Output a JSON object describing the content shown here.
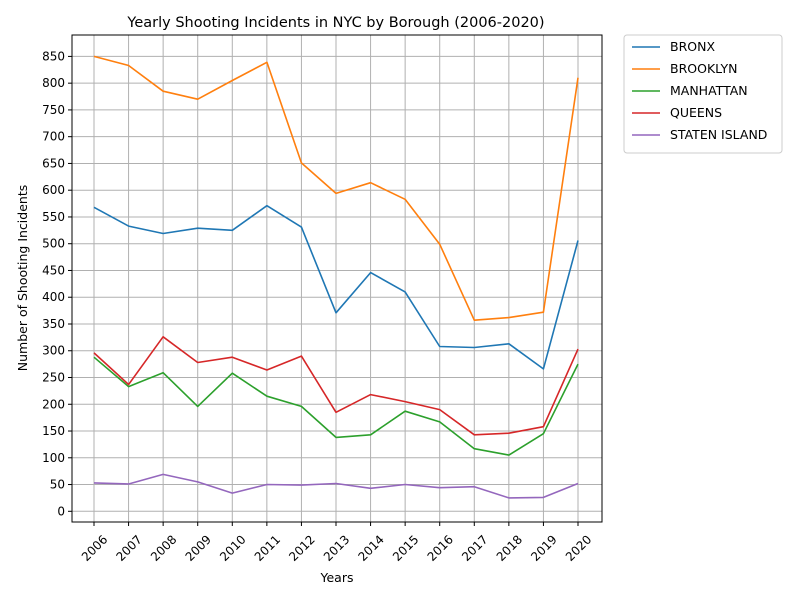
{
  "chart_data": {
    "type": "line",
    "title": "Yearly Shooting Incidents in NYC by Borough (2006-2020)",
    "xlabel": "Years",
    "ylabel": "Number of Shooting Incidents",
    "x": [
      2006,
      2007,
      2008,
      2009,
      2010,
      2011,
      2012,
      2013,
      2014,
      2015,
      2016,
      2017,
      2018,
      2019,
      2020
    ],
    "xticks": [
      "2006",
      "2007",
      "2008",
      "2009",
      "2010",
      "2011",
      "2012",
      "2013",
      "2014",
      "2015",
      "2016",
      "2017",
      "2018",
      "2019",
      "2020"
    ],
    "yticks": [
      "0",
      "50",
      "100",
      "150",
      "200",
      "250",
      "300",
      "350",
      "400",
      "450",
      "500",
      "550",
      "600",
      "650",
      "700",
      "750",
      "800",
      "850"
    ],
    "ylim": [
      -20,
      890
    ],
    "grid": true,
    "legend_position": "outside-top-right",
    "series": [
      {
        "name": "BRONX",
        "color": "#1f77b4",
        "values": [
          568,
          533,
          519,
          529,
          525,
          571,
          531,
          371,
          446,
          410,
          308,
          306,
          313,
          266,
          506
        ]
      },
      {
        "name": "BROOKLYN",
        "color": "#ff7f0e",
        "values": [
          850,
          833,
          785,
          770,
          805,
          839,
          651,
          594,
          614,
          583,
          499,
          357,
          362,
          372,
          810
        ]
      },
      {
        "name": "MANHATTAN",
        "color": "#2ca02c",
        "values": [
          288,
          233,
          259,
          196,
          258,
          215,
          196,
          138,
          143,
          187,
          167,
          117,
          105,
          145,
          275
        ]
      },
      {
        "name": "QUEENS",
        "color": "#d62728",
        "values": [
          296,
          237,
          326,
          278,
          288,
          264,
          290,
          185,
          218,
          205,
          190,
          143,
          146,
          158,
          303
        ]
      },
      {
        "name": "STATEN ISLAND",
        "color": "#9467bd",
        "values": [
          53,
          51,
          69,
          55,
          34,
          50,
          49,
          52,
          43,
          50,
          44,
          46,
          25,
          26,
          52
        ]
      }
    ]
  }
}
